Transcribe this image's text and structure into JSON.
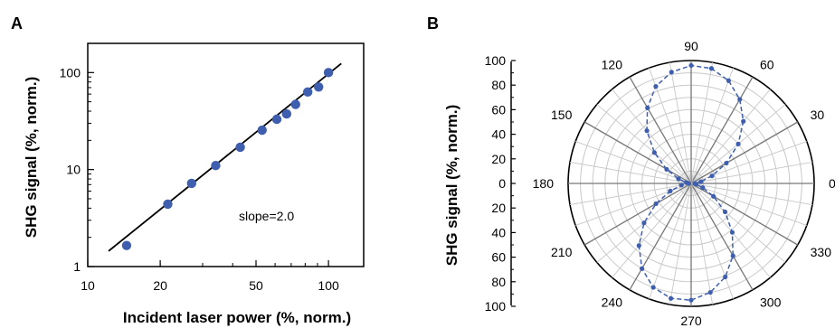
{
  "chart_data": [
    {
      "panel": "A",
      "type": "scatter",
      "xlabel": "Incident laser power (%, norm.)",
      "ylabel": "SHG signal (%, norm.)",
      "xscale": "log",
      "yscale": "log",
      "xlim": [
        10,
        140
      ],
      "ylim": [
        1,
        200
      ],
      "xticks": [
        10,
        20,
        50,
        100
      ],
      "xtick_labels": [
        "10",
        "20",
        "50",
        "100"
      ],
      "yticks": [
        1,
        10,
        100
      ],
      "ytick_labels": [
        "1",
        "10",
        "100"
      ],
      "points": [
        {
          "x": 14.5,
          "y": 1.65
        },
        {
          "x": 21.5,
          "y": 4.4
        },
        {
          "x": 27,
          "y": 7.2
        },
        {
          "x": 34,
          "y": 11
        },
        {
          "x": 43,
          "y": 17
        },
        {
          "x": 53,
          "y": 25.5
        },
        {
          "x": 61,
          "y": 33
        },
        {
          "x": 67,
          "y": 37.5
        },
        {
          "x": 73,
          "y": 47
        },
        {
          "x": 82,
          "y": 63
        },
        {
          "x": 91,
          "y": 71
        },
        {
          "x": 100,
          "y": 100
        }
      ],
      "fit_line": {
        "x_start": 12.2,
        "x_end": 113,
        "slope": 2.0,
        "y_at_100": 97
      },
      "annotation": "slope=2.0",
      "marker_color": "#3f5fae",
      "line_color": "#000000",
      "grid": false
    },
    {
      "panel": "B",
      "type": "polar",
      "ylabel": "SHG signal (%, norm.)",
      "r_ticks_labels": [
        "100",
        "80",
        "60",
        "40",
        "20",
        "0",
        "20",
        "40",
        "60",
        "80",
        "100"
      ],
      "r_max": 100,
      "angle_labels": [
        {
          "deg": 90,
          "text": "90"
        },
        {
          "deg": 60,
          "text": "60"
        },
        {
          "deg": 30,
          "text": "30"
        },
        {
          "deg": 0,
          "text": "0"
        },
        {
          "deg": 330,
          "text": "330"
        },
        {
          "deg": 300,
          "text": "300"
        },
        {
          "deg": 270,
          "text": "270"
        },
        {
          "deg": 240,
          "text": "240"
        },
        {
          "deg": 210,
          "text": "210"
        },
        {
          "deg": 180,
          "text": "180"
        },
        {
          "deg": 150,
          "text": "150"
        },
        {
          "deg": 120,
          "text": "120"
        }
      ],
      "angle_step_deg": 10,
      "series_color": "#3f5fae",
      "grid_color": "#c8c8c8",
      "points": [
        {
          "theta": 0,
          "r": 3
        },
        {
          "theta": 10,
          "r": 8
        },
        {
          "theta": 20,
          "r": 18
        },
        {
          "theta": 30,
          "r": 33
        },
        {
          "theta": 40,
          "r": 50
        },
        {
          "theta": 50,
          "r": 66
        },
        {
          "theta": 60,
          "r": 79
        },
        {
          "theta": 70,
          "r": 89
        },
        {
          "theta": 80,
          "r": 95
        },
        {
          "theta": 90,
          "r": 96
        },
        {
          "theta": 100,
          "r": 92
        },
        {
          "theta": 110,
          "r": 84
        },
        {
          "theta": 120,
          "r": 71
        },
        {
          "theta": 130,
          "r": 56
        },
        {
          "theta": 140,
          "r": 39
        },
        {
          "theta": 150,
          "r": 23
        },
        {
          "theta": 160,
          "r": 11
        },
        {
          "theta": 170,
          "r": 4
        },
        {
          "theta": 180,
          "r": 2
        },
        {
          "theta": 190,
          "r": 8
        },
        {
          "theta": 200,
          "r": 18
        },
        {
          "theta": 210,
          "r": 33
        },
        {
          "theta": 220,
          "r": 50
        },
        {
          "theta": 230,
          "r": 66
        },
        {
          "theta": 240,
          "r": 80
        },
        {
          "theta": 250,
          "r": 90
        },
        {
          "theta": 260,
          "r": 95
        },
        {
          "theta": 270,
          "r": 95
        },
        {
          "theta": 280,
          "r": 90
        },
        {
          "theta": 290,
          "r": 81
        },
        {
          "theta": 300,
          "r": 68
        },
        {
          "theta": 310,
          "r": 52
        },
        {
          "theta": 320,
          "r": 36
        },
        {
          "theta": 330,
          "r": 21
        },
        {
          "theta": 340,
          "r": 10
        },
        {
          "theta": 350,
          "r": 4
        }
      ]
    }
  ]
}
